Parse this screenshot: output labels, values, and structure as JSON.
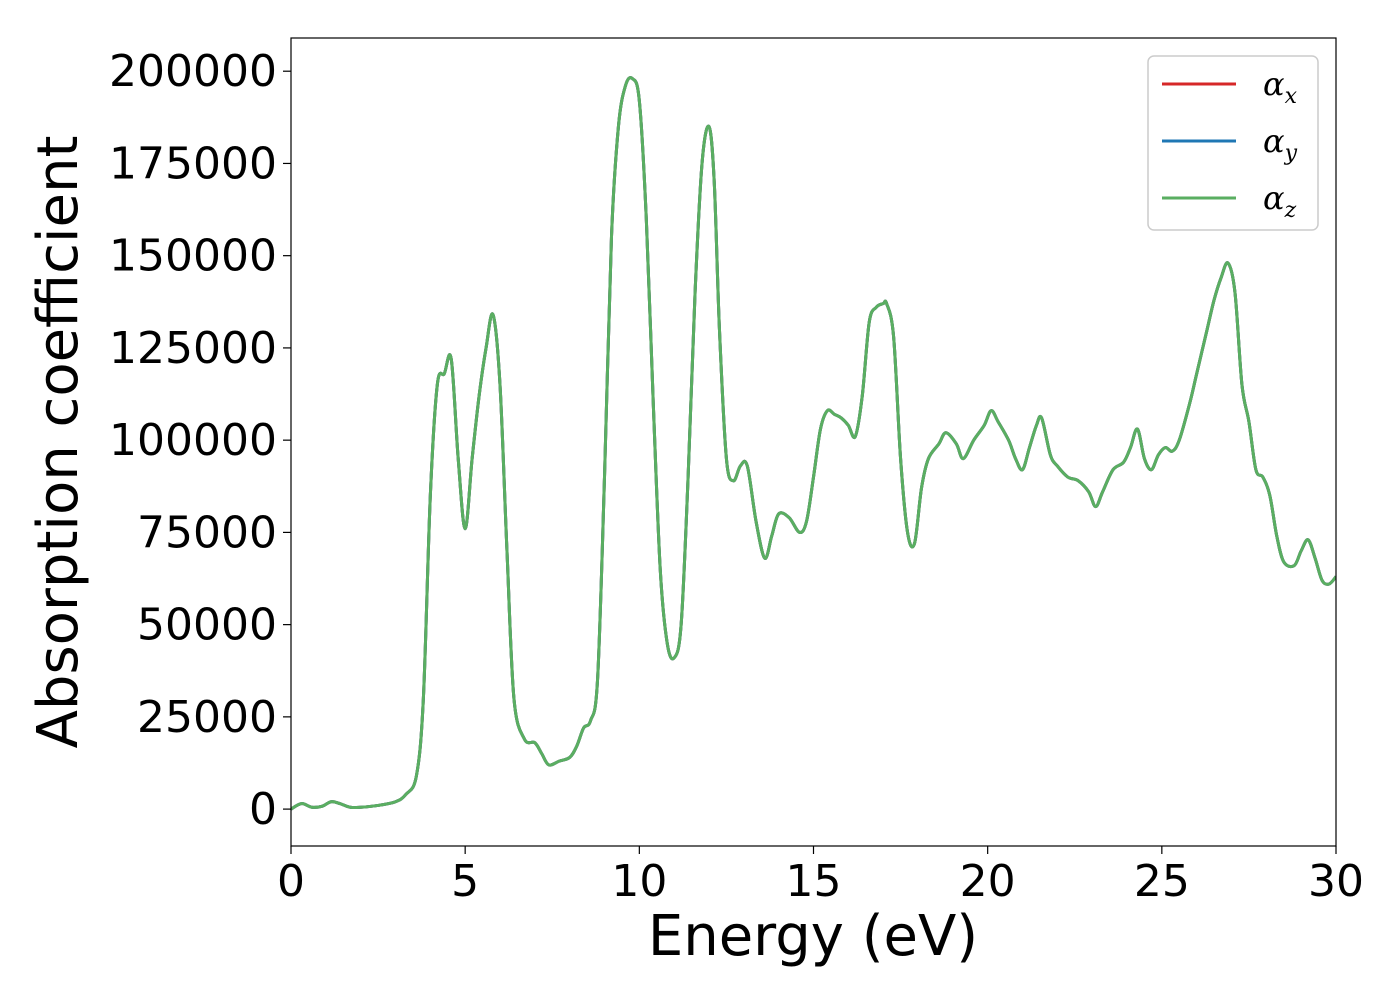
{
  "chart_data": {
    "type": "line",
    "xlabel": "Energy (eV)",
    "ylabel": "Absorption coefficient",
    "xlim": [
      0,
      30
    ],
    "ylim": [
      -10000,
      209000
    ],
    "xticks": [
      0,
      5,
      10,
      15,
      20,
      25,
      30
    ],
    "xtick_labels": [
      "0",
      "5",
      "10",
      "15",
      "20",
      "25",
      "30"
    ],
    "yticks": [
      0,
      25000,
      50000,
      75000,
      100000,
      125000,
      150000,
      175000,
      200000
    ],
    "ytick_labels": [
      "0",
      "25000",
      "50000",
      "75000",
      "100000",
      "125000",
      "150000",
      "175000",
      "200000"
    ],
    "grid": false,
    "legend_position": "top-right",
    "series": [
      {
        "name": "α",
        "subscript": "x",
        "color": "#d62728",
        "x": [
          0,
          0.3,
          0.6,
          0.9,
          1.15,
          1.4,
          1.7,
          2.0,
          2.5,
          3.0,
          3.3,
          3.6,
          3.8,
          4.0,
          4.2,
          4.4,
          4.6,
          4.8,
          5.0,
          5.2,
          5.4,
          5.6,
          5.8,
          6.0,
          6.2,
          6.4,
          6.7,
          7.0,
          7.2,
          7.4,
          7.7,
          8.0,
          8.2,
          8.4,
          8.6,
          8.8,
          9.0,
          9.2,
          9.4,
          9.6,
          9.8,
          10.0,
          10.2,
          10.4,
          10.6,
          10.8,
          11.0,
          11.2,
          11.4,
          11.6,
          11.8,
          12.0,
          12.15,
          12.3,
          12.5,
          12.7,
          12.9,
          13.1,
          13.35,
          13.6,
          13.8,
          14.0,
          14.3,
          14.6,
          14.8,
          15.0,
          15.2,
          15.4,
          15.6,
          15.8,
          16.0,
          16.2,
          16.4,
          16.6,
          16.8,
          17.0,
          17.1,
          17.3,
          17.5,
          17.7,
          17.9,
          18.1,
          18.3,
          18.6,
          18.8,
          19.1,
          19.3,
          19.6,
          19.9,
          20.1,
          20.3,
          20.6,
          20.8,
          21.0,
          21.2,
          21.4,
          21.55,
          21.8,
          22.0,
          22.3,
          22.6,
          22.9,
          23.1,
          23.3,
          23.6,
          23.9,
          24.1,
          24.3,
          24.5,
          24.7,
          24.9,
          25.1,
          25.3,
          25.5,
          25.8,
          26.0,
          26.3,
          26.5,
          26.7,
          26.9,
          27.1,
          27.3,
          27.5,
          27.7,
          27.9,
          28.1,
          28.3,
          28.5,
          28.8,
          29.0,
          29.2,
          29.4,
          29.6,
          29.8,
          30.0
        ],
        "y": [
          0,
          1500,
          500,
          800,
          2000,
          1500,
          500,
          500,
          1000,
          2000,
          4000,
          9000,
          30000,
          85000,
          115000,
          118000,
          122000,
          95000,
          76000,
          95000,
          112000,
          125000,
          134000,
          115000,
          70000,
          30000,
          19000,
          18000,
          15000,
          12000,
          13000,
          14000,
          17000,
          22000,
          24000,
          35000,
          90000,
          155000,
          185000,
          196000,
          198000,
          192000,
          160000,
          110000,
          65000,
          45000,
          41000,
          50000,
          90000,
          140000,
          175000,
          185000,
          170000,
          130000,
          95000,
          89000,
          93000,
          93000,
          78000,
          68000,
          74000,
          80000,
          79000,
          75000,
          78000,
          90000,
          103000,
          108000,
          107000,
          106000,
          104000,
          101000,
          112000,
          132000,
          136000,
          137000,
          137000,
          128000,
          95000,
          75000,
          72000,
          87000,
          95000,
          99000,
          102000,
          99000,
          95000,
          100000,
          104000,
          108000,
          105000,
          100000,
          95000,
          92000,
          98000,
          104000,
          106000,
          96000,
          93000,
          90000,
          89000,
          86000,
          82000,
          86000,
          92000,
          94000,
          98000,
          103000,
          95000,
          92000,
          96000,
          98000,
          97000,
          100000,
          110000,
          118000,
          130000,
          138000,
          144000,
          148000,
          140000,
          115000,
          105000,
          92000,
          90000,
          85000,
          74000,
          67000,
          66000,
          70000,
          73000,
          68000,
          62000,
          61000,
          63000
        ]
      },
      {
        "name": "α",
        "subscript": "y",
        "color": "#1f77b4",
        "x": [
          0,
          0.3,
          0.6,
          0.9,
          1.15,
          1.4,
          1.7,
          2.0,
          2.5,
          3.0,
          3.3,
          3.6,
          3.8,
          4.0,
          4.2,
          4.4,
          4.6,
          4.8,
          5.0,
          5.2,
          5.4,
          5.6,
          5.8,
          6.0,
          6.2,
          6.4,
          6.7,
          7.0,
          7.2,
          7.4,
          7.7,
          8.0,
          8.2,
          8.4,
          8.6,
          8.8,
          9.0,
          9.2,
          9.4,
          9.6,
          9.8,
          10.0,
          10.2,
          10.4,
          10.6,
          10.8,
          11.0,
          11.2,
          11.4,
          11.6,
          11.8,
          12.0,
          12.15,
          12.3,
          12.5,
          12.7,
          12.9,
          13.1,
          13.35,
          13.6,
          13.8,
          14.0,
          14.3,
          14.6,
          14.8,
          15.0,
          15.2,
          15.4,
          15.6,
          15.8,
          16.0,
          16.2,
          16.4,
          16.6,
          16.8,
          17.0,
          17.1,
          17.3,
          17.5,
          17.7,
          17.9,
          18.1,
          18.3,
          18.6,
          18.8,
          19.1,
          19.3,
          19.6,
          19.9,
          20.1,
          20.3,
          20.6,
          20.8,
          21.0,
          21.2,
          21.4,
          21.55,
          21.8,
          22.0,
          22.3,
          22.6,
          22.9,
          23.1,
          23.3,
          23.6,
          23.9,
          24.1,
          24.3,
          24.5,
          24.7,
          24.9,
          25.1,
          25.3,
          25.5,
          25.8,
          26.0,
          26.3,
          26.5,
          26.7,
          26.9,
          27.1,
          27.3,
          27.5,
          27.7,
          27.9,
          28.1,
          28.3,
          28.5,
          28.8,
          29.0,
          29.2,
          29.4,
          29.6,
          29.8,
          30.0
        ],
        "y": [
          0,
          1500,
          500,
          800,
          2000,
          1500,
          500,
          500,
          1000,
          2000,
          4000,
          9000,
          30000,
          85000,
          115000,
          118000,
          122000,
          95000,
          76000,
          95000,
          112000,
          125000,
          134000,
          115000,
          70000,
          30000,
          19000,
          18000,
          15000,
          12000,
          13000,
          14000,
          17000,
          22000,
          24000,
          35000,
          90000,
          155000,
          185000,
          196000,
          198000,
          192000,
          160000,
          110000,
          65000,
          45000,
          41000,
          50000,
          90000,
          140000,
          175000,
          185000,
          170000,
          130000,
          95000,
          89000,
          93000,
          93000,
          78000,
          68000,
          74000,
          80000,
          79000,
          75000,
          78000,
          90000,
          103000,
          108000,
          107000,
          106000,
          104000,
          101000,
          112000,
          132000,
          136000,
          137000,
          137000,
          128000,
          95000,
          75000,
          72000,
          87000,
          95000,
          99000,
          102000,
          99000,
          95000,
          100000,
          104000,
          108000,
          105000,
          100000,
          95000,
          92000,
          98000,
          104000,
          106000,
          96000,
          93000,
          90000,
          89000,
          86000,
          82000,
          86000,
          92000,
          94000,
          98000,
          103000,
          95000,
          92000,
          96000,
          98000,
          97000,
          100000,
          110000,
          118000,
          130000,
          138000,
          144000,
          148000,
          140000,
          115000,
          105000,
          92000,
          90000,
          85000,
          74000,
          67000,
          66000,
          70000,
          73000,
          68000,
          62000,
          61000,
          63000
        ]
      },
      {
        "name": "α",
        "subscript": "z",
        "color": "#5aae61",
        "x": [
          0,
          0.3,
          0.6,
          0.9,
          1.15,
          1.4,
          1.7,
          2.0,
          2.5,
          3.0,
          3.3,
          3.6,
          3.8,
          4.0,
          4.2,
          4.4,
          4.6,
          4.8,
          5.0,
          5.2,
          5.4,
          5.6,
          5.8,
          6.0,
          6.2,
          6.4,
          6.7,
          7.0,
          7.2,
          7.4,
          7.7,
          8.0,
          8.2,
          8.4,
          8.6,
          8.8,
          9.0,
          9.2,
          9.4,
          9.6,
          9.8,
          10.0,
          10.2,
          10.4,
          10.6,
          10.8,
          11.0,
          11.2,
          11.4,
          11.6,
          11.8,
          12.0,
          12.15,
          12.3,
          12.5,
          12.7,
          12.9,
          13.1,
          13.35,
          13.6,
          13.8,
          14.0,
          14.3,
          14.6,
          14.8,
          15.0,
          15.2,
          15.4,
          15.6,
          15.8,
          16.0,
          16.2,
          16.4,
          16.6,
          16.8,
          17.0,
          17.1,
          17.3,
          17.5,
          17.7,
          17.9,
          18.1,
          18.3,
          18.6,
          18.8,
          19.1,
          19.3,
          19.6,
          19.9,
          20.1,
          20.3,
          20.6,
          20.8,
          21.0,
          21.2,
          21.4,
          21.55,
          21.8,
          22.0,
          22.3,
          22.6,
          22.9,
          23.1,
          23.3,
          23.6,
          23.9,
          24.1,
          24.3,
          24.5,
          24.7,
          24.9,
          25.1,
          25.3,
          25.5,
          25.8,
          26.0,
          26.3,
          26.5,
          26.7,
          26.9,
          27.1,
          27.3,
          27.5,
          27.7,
          27.9,
          28.1,
          28.3,
          28.5,
          28.8,
          29.0,
          29.2,
          29.4,
          29.6,
          29.8,
          30.0
        ],
        "y": [
          0,
          1500,
          500,
          800,
          2000,
          1500,
          500,
          500,
          1000,
          2000,
          4000,
          9000,
          30000,
          85000,
          115000,
          118000,
          122000,
          95000,
          76000,
          95000,
          112000,
          125000,
          134000,
          115000,
          70000,
          30000,
          19000,
          18000,
          15000,
          12000,
          13000,
          14000,
          17000,
          22000,
          24000,
          35000,
          90000,
          155000,
          185000,
          196000,
          198000,
          192000,
          160000,
          110000,
          65000,
          45000,
          41000,
          50000,
          90000,
          140000,
          175000,
          185000,
          170000,
          130000,
          95000,
          89000,
          93000,
          93000,
          78000,
          68000,
          74000,
          80000,
          79000,
          75000,
          78000,
          90000,
          103000,
          108000,
          107000,
          106000,
          104000,
          101000,
          112000,
          132000,
          136000,
          137000,
          137000,
          128000,
          95000,
          75000,
          72000,
          87000,
          95000,
          99000,
          102000,
          99000,
          95000,
          100000,
          104000,
          108000,
          105000,
          100000,
          95000,
          92000,
          98000,
          104000,
          106000,
          96000,
          93000,
          90000,
          89000,
          86000,
          82000,
          86000,
          92000,
          94000,
          98000,
          103000,
          95000,
          92000,
          96000,
          98000,
          97000,
          100000,
          110000,
          118000,
          130000,
          138000,
          144000,
          148000,
          140000,
          115000,
          105000,
          92000,
          90000,
          85000,
          74000,
          67000,
          66000,
          70000,
          73000,
          68000,
          62000,
          61000,
          63000
        ]
      }
    ]
  }
}
